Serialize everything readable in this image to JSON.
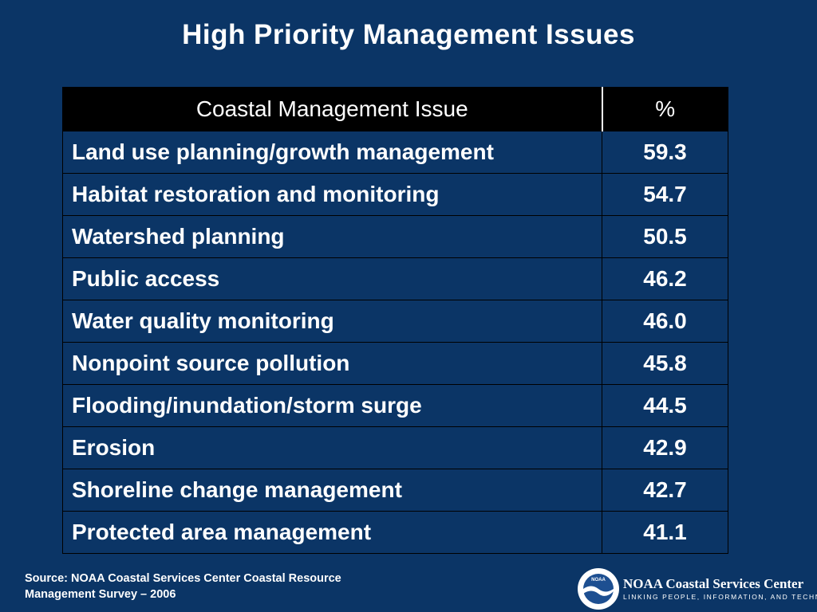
{
  "title": "High Priority Management Issues",
  "table": {
    "headers": [
      "Coastal Management Issue",
      "%"
    ],
    "rows": [
      [
        "Land use planning/growth management",
        "59.3"
      ],
      [
        "Habitat restoration and monitoring",
        "54.7"
      ],
      [
        "Watershed planning",
        "50.5"
      ],
      [
        "Public access",
        "46.2"
      ],
      [
        "Water quality monitoring",
        "46.0"
      ],
      [
        "Nonpoint source pollution",
        "45.8"
      ],
      [
        "Flooding/inundation/storm surge",
        "44.5"
      ],
      [
        "Erosion",
        "42.9"
      ],
      [
        "Shoreline change management",
        "42.7"
      ],
      [
        "Protected area management",
        "41.1"
      ]
    ]
  },
  "footer": {
    "source_line1": "Source: NOAA Coastal Services Center Coastal Resource",
    "source_line2": "Management Survey – 2006",
    "org_name": "NOAA Coastal Services Center",
    "org_tagline": "LINKING PEOPLE, INFORMATION, AND TECHNOLOGY",
    "logo_text": "NOAA",
    "logo_icon": "noaa-seagull-logo"
  },
  "colors": {
    "background": "#0b3566",
    "header_bg": "#000000",
    "text": "#ffffff",
    "logo_blue": "#1d4f91"
  }
}
